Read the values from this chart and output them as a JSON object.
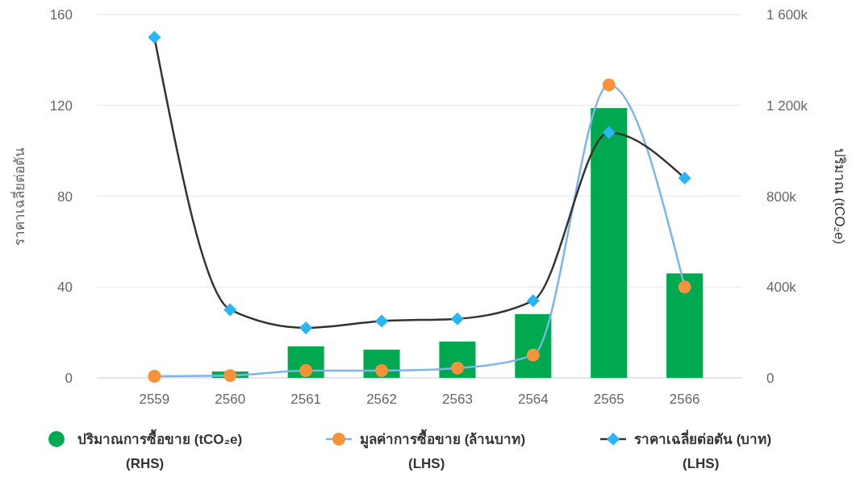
{
  "chart_data": {
    "type": "bar",
    "ylabel": "ราคาเฉลี่ยต่อตัน",
    "y2label": "ปริมาณ (tCO₂e)",
    "categories": [
      "2559",
      "2560",
      "2561",
      "2562",
      "2563",
      "2564",
      "2565",
      "2566"
    ],
    "ylim": [
      0,
      160
    ],
    "yticks": [
      0,
      40,
      80,
      120,
      160
    ],
    "y2lim": [
      0,
      1600000
    ],
    "y2ticks": [
      {
        "value": 0,
        "label": "0"
      },
      {
        "value": 400000,
        "label": "400k"
      },
      {
        "value": 800000,
        "label": "800k"
      },
      {
        "value": 1200000,
        "label": "1 200k"
      },
      {
        "value": 1600000,
        "label": "1 600k"
      }
    ],
    "grid": "y",
    "legend": "bottom",
    "series": [
      {
        "name": "ปริมาณการซื้อขาย (tCO₂e)\n(RHS)",
        "axis": "y2",
        "color": "#00a84f",
        "values": [
          0,
          28000,
          139000,
          124000,
          160000,
          281000,
          1188000,
          460000
        ]
      },
      {
        "name": "มูลค่าการซื้อขาย  (ล้านบาท)\n(LHS)",
        "type": "line",
        "marker": "circle",
        "color": "#7cb5ec",
        "colors": [
          "#f7923a",
          "#f7923a",
          "#f7923a",
          "#f7923a",
          "#f7923a",
          "#f7923a",
          "#f7923a",
          "#f7923a"
        ],
        "values": [
          0.7,
          1,
          3.2,
          3.2,
          4.3,
          10,
          129,
          40
        ]
      },
      {
        "name": "ราคาเฉลี่ยต่อตัน (บาท)\n(LHS)",
        "type": "line",
        "marker": "diamond",
        "color": "#333333",
        "colors": [
          "#29b6f6",
          "#29b6f6",
          "#29b6f6",
          "#29b6f6",
          "#29b6f6",
          "#29b6f6",
          "#29b6f6",
          "#29b6f6"
        ],
        "values": [
          150,
          30,
          22,
          25,
          26,
          34,
          108,
          88
        ]
      }
    ]
  }
}
